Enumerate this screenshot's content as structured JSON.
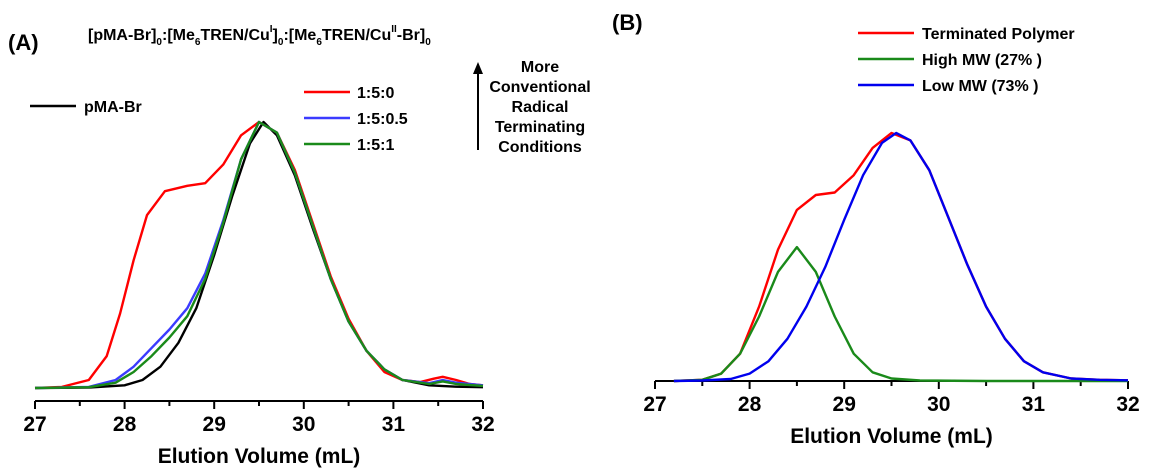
{
  "chart_data": [
    {
      "panel": "(A)",
      "type": "line",
      "title_parts": {
        "a": "[pMA-Br]",
        "a_sub": "0",
        "b": ":[Me",
        "b_sub": "6",
        "c": "TREN/Cu",
        "c_sup": "I",
        "d": "]",
        "d_sub": "0",
        "e": ":[Me",
        "e_sub": "6",
        "f": "TREN/Cu",
        "f_sup": "II",
        "g": "-Br]",
        "g_sub": "0"
      },
      "xlabel": "Elution Volume (mL)",
      "ylabel": "",
      "xlim": [
        27,
        32
      ],
      "ylim": [
        0,
        1
      ],
      "x_ticks": [
        "27",
        "28",
        "29",
        "30",
        "31",
        "32"
      ],
      "annotation": [
        "More",
        "Conventional",
        "Radical",
        "Terminating",
        "Conditions"
      ],
      "series": [
        {
          "name": "pMA-Br",
          "color": "#000000",
          "points": [
            [
              27.0,
              0.0
            ],
            [
              27.6,
              0.002
            ],
            [
              28.0,
              0.01
            ],
            [
              28.2,
              0.03
            ],
            [
              28.4,
              0.08
            ],
            [
              28.6,
              0.17
            ],
            [
              28.8,
              0.3
            ],
            [
              29.0,
              0.5
            ],
            [
              29.2,
              0.72
            ],
            [
              29.4,
              0.92
            ],
            [
              29.55,
              1.0
            ],
            [
              29.7,
              0.95
            ],
            [
              29.9,
              0.8
            ],
            [
              30.1,
              0.6
            ],
            [
              30.3,
              0.41
            ],
            [
              30.5,
              0.25
            ],
            [
              30.7,
              0.14
            ],
            [
              30.9,
              0.07
            ],
            [
              31.1,
              0.03
            ],
            [
              31.4,
              0.01
            ],
            [
              31.7,
              0.005
            ],
            [
              32.0,
              0.003
            ]
          ]
        },
        {
          "name": "1:5:0",
          "color": "#ff0000",
          "points": [
            [
              27.0,
              0.0
            ],
            [
              27.3,
              0.004
            ],
            [
              27.6,
              0.03
            ],
            [
              27.8,
              0.12
            ],
            [
              27.95,
              0.28
            ],
            [
              28.1,
              0.48
            ],
            [
              28.25,
              0.65
            ],
            [
              28.45,
              0.74
            ],
            [
              28.7,
              0.76
            ],
            [
              28.9,
              0.77
            ],
            [
              29.1,
              0.84
            ],
            [
              29.3,
              0.95
            ],
            [
              29.5,
              1.0
            ],
            [
              29.7,
              0.96
            ],
            [
              29.9,
              0.82
            ],
            [
              30.1,
              0.62
            ],
            [
              30.3,
              0.42
            ],
            [
              30.5,
              0.26
            ],
            [
              30.7,
              0.14
            ],
            [
              30.9,
              0.06
            ],
            [
              31.1,
              0.03
            ],
            [
              31.3,
              0.022
            ],
            [
              31.45,
              0.035
            ],
            [
              31.55,
              0.042
            ],
            [
              31.7,
              0.03
            ],
            [
              31.85,
              0.015
            ],
            [
              32.0,
              0.01
            ]
          ]
        },
        {
          "name": "1:5:0.5",
          "color": "#3b3bff",
          "points": [
            [
              27.0,
              0.0
            ],
            [
              27.6,
              0.004
            ],
            [
              27.9,
              0.03
            ],
            [
              28.1,
              0.08
            ],
            [
              28.3,
              0.15
            ],
            [
              28.5,
              0.22
            ],
            [
              28.7,
              0.3
            ],
            [
              28.9,
              0.43
            ],
            [
              29.1,
              0.63
            ],
            [
              29.3,
              0.86
            ],
            [
              29.5,
              1.0
            ],
            [
              29.7,
              0.96
            ],
            [
              29.9,
              0.81
            ],
            [
              30.1,
              0.61
            ],
            [
              30.3,
              0.41
            ],
            [
              30.5,
              0.25
            ],
            [
              30.7,
              0.14
            ],
            [
              30.9,
              0.07
            ],
            [
              31.1,
              0.03
            ],
            [
              31.4,
              0.018
            ],
            [
              31.55,
              0.03
            ],
            [
              31.7,
              0.02
            ],
            [
              32.0,
              0.01
            ]
          ]
        },
        {
          "name": "1:5:1",
          "color": "#1a8a1a",
          "points": [
            [
              27.0,
              0.0
            ],
            [
              27.6,
              0.003
            ],
            [
              27.9,
              0.02
            ],
            [
              28.1,
              0.06
            ],
            [
              28.3,
              0.12
            ],
            [
              28.5,
              0.19
            ],
            [
              28.7,
              0.27
            ],
            [
              28.9,
              0.41
            ],
            [
              29.1,
              0.62
            ],
            [
              29.3,
              0.86
            ],
            [
              29.5,
              1.0
            ],
            [
              29.7,
              0.96
            ],
            [
              29.9,
              0.81
            ],
            [
              30.1,
              0.61
            ],
            [
              30.3,
              0.41
            ],
            [
              30.5,
              0.25
            ],
            [
              30.7,
              0.14
            ],
            [
              30.9,
              0.07
            ],
            [
              31.1,
              0.03
            ],
            [
              31.4,
              0.015
            ],
            [
              31.55,
              0.025
            ],
            [
              31.7,
              0.015
            ],
            [
              32.0,
              0.008
            ]
          ]
        }
      ]
    },
    {
      "panel": "(B)",
      "type": "line",
      "title": "",
      "xlabel": "Elution Volume (mL)",
      "ylabel": "",
      "xlim": [
        27,
        32
      ],
      "ylim": [
        0,
        1
      ],
      "x_ticks": [
        "27",
        "28",
        "29",
        "30",
        "31",
        "32"
      ],
      "series": [
        {
          "name": "Terminated Polymer",
          "color": "#ff0000",
          "points": [
            [
              27.2,
              0.0
            ],
            [
              27.5,
              0.005
            ],
            [
              27.7,
              0.03
            ],
            [
              27.9,
              0.11
            ],
            [
              28.1,
              0.3
            ],
            [
              28.3,
              0.53
            ],
            [
              28.5,
              0.69
            ],
            [
              28.7,
              0.75
            ],
            [
              28.9,
              0.76
            ],
            [
              29.1,
              0.83
            ],
            [
              29.3,
              0.94
            ],
            [
              29.5,
              1.0
            ],
            [
              29.7,
              0.97
            ],
            [
              29.9,
              0.85
            ],
            [
              30.1,
              0.66
            ],
            [
              30.3,
              0.47
            ],
            [
              30.5,
              0.3
            ],
            [
              30.7,
              0.17
            ],
            [
              30.9,
              0.08
            ],
            [
              31.1,
              0.035
            ],
            [
              31.4,
              0.01
            ],
            [
              31.7,
              0.005
            ],
            [
              32.0,
              0.003
            ]
          ]
        },
        {
          "name": "High MW (27% )",
          "color": "#1a8a1a",
          "points": [
            [
              27.2,
              0.0
            ],
            [
              27.5,
              0.005
            ],
            [
              27.7,
              0.03
            ],
            [
              27.9,
              0.11
            ],
            [
              28.1,
              0.26
            ],
            [
              28.3,
              0.44
            ],
            [
              28.5,
              0.54
            ],
            [
              28.7,
              0.44
            ],
            [
              28.9,
              0.26
            ],
            [
              29.1,
              0.11
            ],
            [
              29.3,
              0.035
            ],
            [
              29.5,
              0.01
            ],
            [
              29.8,
              0.002
            ],
            [
              30.5,
              0.0
            ],
            [
              32.0,
              0.0
            ]
          ]
        },
        {
          "name": "Low MW (73% )",
          "color": "#0000ee",
          "points": [
            [
              27.2,
              0.0
            ],
            [
              27.5,
              0.002
            ],
            [
              27.8,
              0.008
            ],
            [
              28.0,
              0.03
            ],
            [
              28.2,
              0.08
            ],
            [
              28.4,
              0.17
            ],
            [
              28.6,
              0.3
            ],
            [
              28.8,
              0.46
            ],
            [
              29.0,
              0.65
            ],
            [
              29.2,
              0.83
            ],
            [
              29.4,
              0.96
            ],
            [
              29.55,
              1.0
            ],
            [
              29.7,
              0.97
            ],
            [
              29.9,
              0.85
            ],
            [
              30.1,
              0.66
            ],
            [
              30.3,
              0.47
            ],
            [
              30.5,
              0.3
            ],
            [
              30.7,
              0.17
            ],
            [
              30.9,
              0.08
            ],
            [
              31.1,
              0.035
            ],
            [
              31.4,
              0.01
            ],
            [
              31.7,
              0.005
            ],
            [
              32.0,
              0.003
            ]
          ]
        }
      ]
    }
  ]
}
